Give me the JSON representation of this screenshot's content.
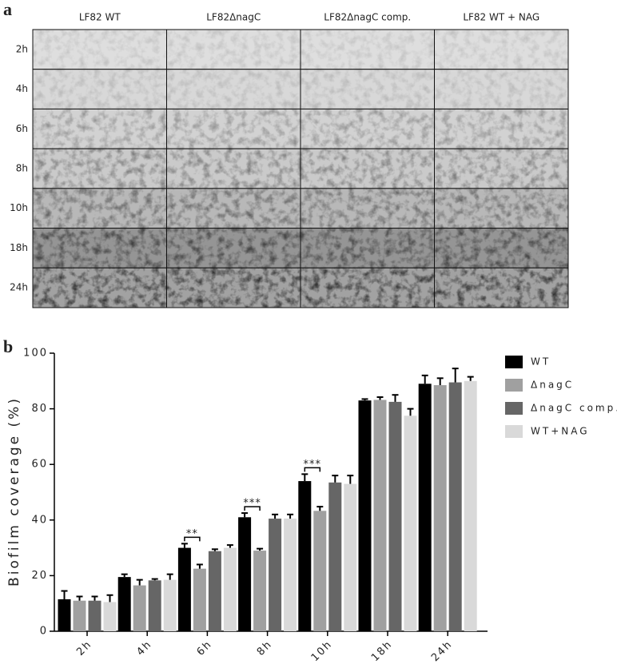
{
  "panel_a": {
    "label": "a",
    "columns": [
      "LF82 WT",
      "LF82ΔnagC",
      "LF82ΔnagC comp.",
      "LF82 WT + NAG"
    ],
    "rows": [
      "2h",
      "4h",
      "6h",
      "8h",
      "10h",
      "18h",
      "24h"
    ]
  },
  "chart_data": {
    "type": "bar",
    "label": "b",
    "y_label": "Biofilm coverage (%)",
    "categories": [
      "2h",
      "4h",
      "6h",
      "8h",
      "10h",
      "18h",
      "24h"
    ],
    "series": [
      {
        "name": "WT",
        "color": "#000000",
        "values": [
          11.5,
          19.5,
          30,
          41,
          54,
          83,
          89
        ],
        "errors": [
          3,
          1,
          1.5,
          1.5,
          2.5,
          0.5,
          3
        ]
      },
      {
        "name": "ΔnagC",
        "color": "#a0a0a0",
        "values": [
          11,
          16.5,
          22.5,
          29,
          43.3,
          83.2,
          88.5
        ],
        "errors": [
          1.5,
          2,
          1.5,
          0.7,
          1.5,
          1,
          2.5
        ]
      },
      {
        "name": "ΔnagC comp.",
        "color": "#666666",
        "values": [
          11,
          18.3,
          28.8,
          40.5,
          53.5,
          82.5,
          89.5
        ],
        "errors": [
          1.5,
          0.5,
          0.7,
          1.5,
          2.5,
          2.5,
          5
        ]
      },
      {
        "name": "WT+NAG",
        "color": "#d9d9d9",
        "values": [
          10.5,
          18.5,
          30,
          40.5,
          53,
          77.5,
          90
        ],
        "errors": [
          2.5,
          2,
          1,
          1.5,
          3,
          2.5,
          1.5
        ]
      }
    ],
    "ylim": [
      0,
      100
    ],
    "yticks": [
      0,
      20,
      40,
      60,
      80,
      100
    ],
    "legend": "right",
    "annotations": [
      {
        "category": "6h",
        "text": "**"
      },
      {
        "category": "8h",
        "text": "***"
      },
      {
        "category": "10h",
        "text": "***"
      }
    ]
  }
}
